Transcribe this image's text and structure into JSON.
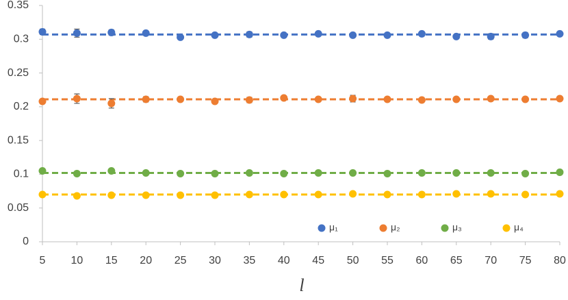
{
  "chart_data": {
    "type": "scatter",
    "x_label": "l",
    "x": [
      5,
      10,
      15,
      20,
      25,
      30,
      35,
      40,
      45,
      50,
      55,
      60,
      65,
      70,
      75,
      80
    ],
    "xlim": [
      5,
      80
    ],
    "xticks": [
      5,
      10,
      15,
      20,
      25,
      30,
      35,
      40,
      45,
      50,
      55,
      60,
      65,
      70,
      75,
      80
    ],
    "ylim": [
      0,
      0.35
    ],
    "yticks": [
      0,
      0.05,
      0.1,
      0.15,
      0.2,
      0.25,
      0.3,
      0.35
    ],
    "legend": "bottom-right",
    "series": [
      {
        "name": "μ₁",
        "color": "#4472c4",
        "trend": 0.307,
        "values": [
          0.311,
          0.309,
          0.31,
          0.309,
          0.303,
          0.306,
          0.307,
          0.306,
          0.308,
          0.306,
          0.306,
          0.308,
          0.304,
          0.304,
          0.306,
          0.308
        ],
        "errors": [
          0.004,
          0.006,
          0.004,
          0.002,
          0.002,
          0.002,
          0.004,
          0.002,
          0.003,
          0.003,
          0.002,
          0.003,
          0.002,
          0.004,
          0.004,
          0.002
        ]
      },
      {
        "name": "μ₂",
        "color": "#ed7d31",
        "trend": 0.211,
        "values": [
          0.208,
          0.212,
          0.205,
          0.211,
          0.211,
          0.208,
          0.21,
          0.213,
          0.211,
          0.212,
          0.211,
          0.21,
          0.211,
          0.212,
          0.211,
          0.212
        ],
        "errors": [
          0.003,
          0.007,
          0.007,
          0.004,
          0.003,
          0.002,
          0.004,
          0.002,
          0.003,
          0.005,
          0.002,
          0.002,
          0.002,
          0.002,
          0.002,
          0.002
        ]
      },
      {
        "name": "μ₃",
        "color": "#70ad47",
        "trend": 0.102,
        "values": [
          0.105,
          0.101,
          0.105,
          0.102,
          0.101,
          0.101,
          0.102,
          0.101,
          0.102,
          0.102,
          0.101,
          0.102,
          0.102,
          0.102,
          0.101,
          0.103
        ],
        "errors": [
          0.002,
          0.003,
          0.002,
          0.002,
          0.002,
          0.002,
          0.002,
          0.002,
          0.002,
          0.002,
          0.002,
          0.002,
          0.002,
          0.002,
          0.002,
          0.002
        ]
      },
      {
        "name": "μ₄",
        "color": "#ffc000",
        "trend": 0.07,
        "values": [
          0.07,
          0.068,
          0.069,
          0.069,
          0.069,
          0.069,
          0.07,
          0.07,
          0.07,
          0.071,
          0.07,
          0.07,
          0.071,
          0.071,
          0.07,
          0.071
        ],
        "errors": [
          0.002,
          0.003,
          0.003,
          0.002,
          0.002,
          0.002,
          0.003,
          0.002,
          0.002,
          0.002,
          0.002,
          0.002,
          0.002,
          0.002,
          0.002,
          0.002
        ]
      }
    ]
  }
}
